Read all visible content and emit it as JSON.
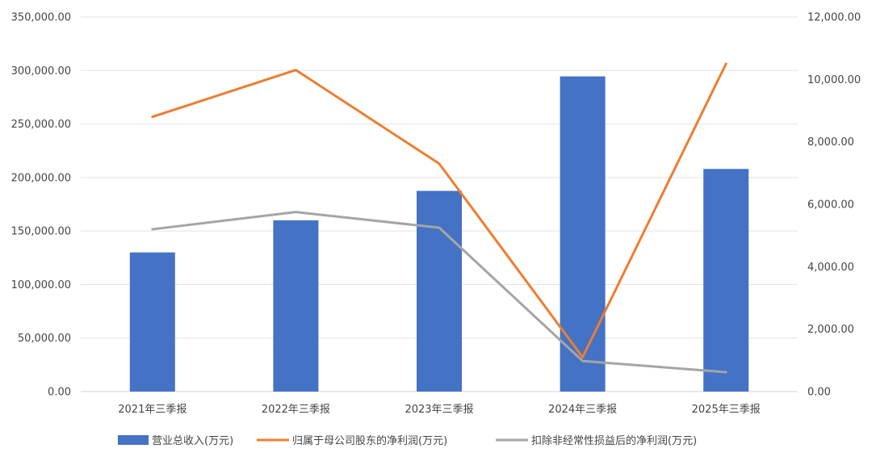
{
  "chart_data": {
    "type": "bar",
    "categories": [
      "2021年三季报",
      "2022年三季报",
      "2023年三季报",
      "2024年三季报",
      "2025年三季报"
    ],
    "y_left": {
      "ylim": [
        0,
        350000
      ],
      "ticks": [
        0,
        50000,
        100000,
        150000,
        200000,
        250000,
        300000,
        350000
      ],
      "tick_labels": [
        "0.00",
        "50,000.00",
        "100,000.00",
        "150,000.00",
        "200,000.00",
        "250,000.00",
        "300,000.00",
        "350,000.00"
      ]
    },
    "y_right": {
      "ylim": [
        0,
        12000
      ],
      "ticks": [
        0,
        2000,
        4000,
        6000,
        8000,
        10000,
        12000
      ],
      "tick_labels": [
        "0.00",
        "2,000.00",
        "4,000.00",
        "6,000.00",
        "8,000.00",
        "10,000.00",
        "12,000.00"
      ]
    },
    "series": [
      {
        "name": "营业总收入(万元)",
        "type": "bar",
        "axis": "left",
        "color": "#4472C4",
        "values": [
          130000,
          160000,
          187500,
          294500,
          208000
        ]
      },
      {
        "name": "归属于母公司股东的净利润(万元)",
        "type": "line",
        "axis": "right",
        "color": "#ED7D31",
        "values": [
          8800,
          10300,
          7300,
          1100,
          10500
        ]
      },
      {
        "name": "扣除非经常性损益后的净利润(万元)",
        "type": "line",
        "axis": "right",
        "color": "#A5A5A5",
        "values": [
          5200,
          5750,
          5250,
          980,
          620
        ]
      }
    ],
    "grid": true,
    "legend_position": "bottom"
  }
}
